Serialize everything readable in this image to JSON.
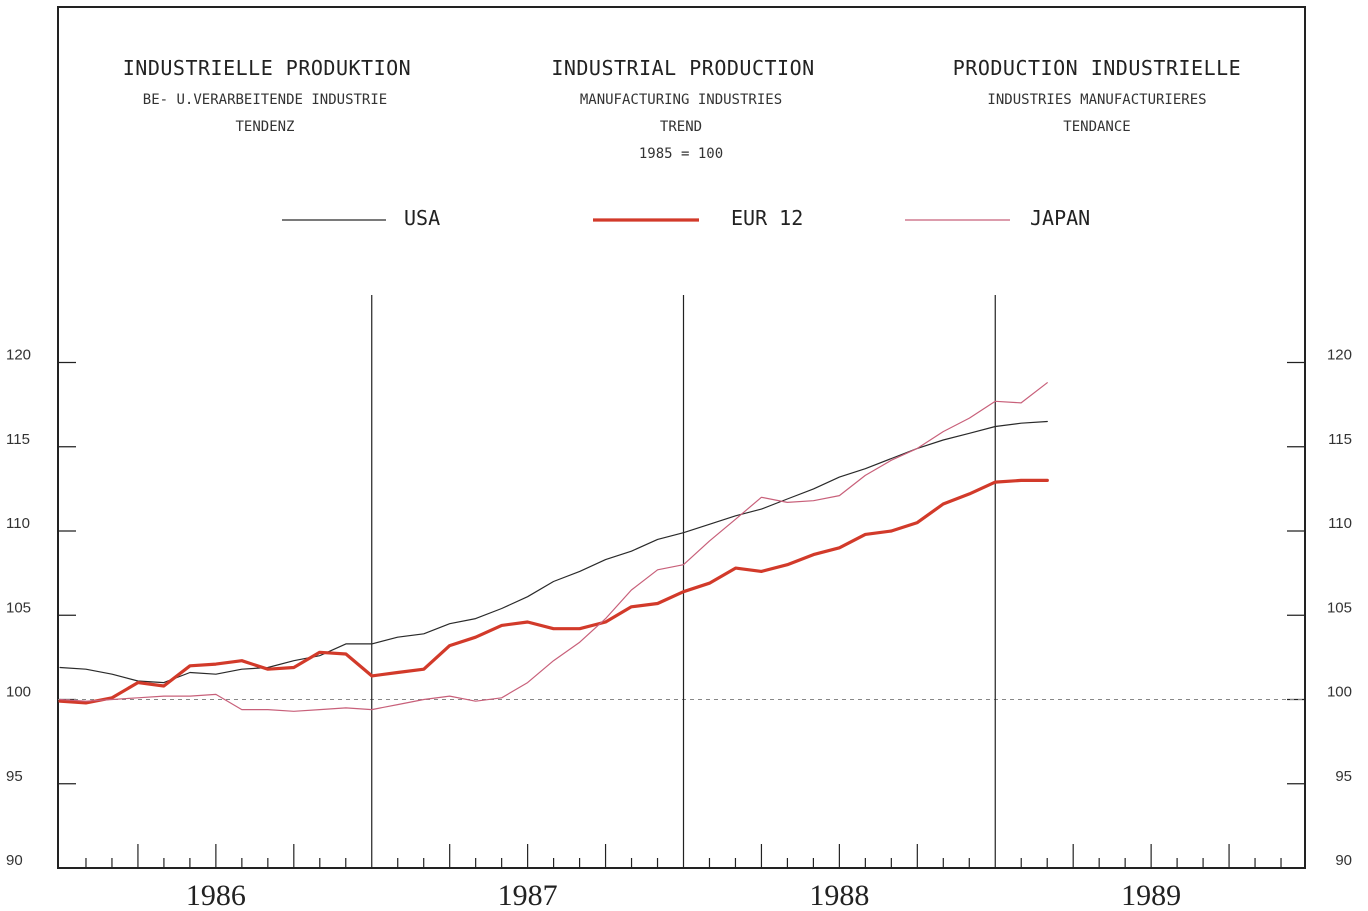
{
  "titles": {
    "de": {
      "title": "INDUSTRIELLE PRODUKTION",
      "line1": "BE- U.VERARBEITENDE INDUSTRIE",
      "line2": "TENDENZ"
    },
    "en": {
      "title": "INDUSTRIAL PRODUCTION",
      "line1": "MANUFACTURING INDUSTRIES",
      "line2": "TREND",
      "line3": "1985 = 100"
    },
    "fr": {
      "title": "PRODUCTION INDUSTRIELLE",
      "line1": "INDUSTRIES MANUFACTURIERES",
      "line2": "TENDANCE"
    }
  },
  "colors": {
    "usa": "#2a2a2a",
    "eur12": "#d23a2a",
    "japan": "#c8607a",
    "axis": "#222222",
    "reference": "#888888"
  },
  "chart_data": {
    "type": "line",
    "x_unit": "year (monthly observations)",
    "x_range": [
      1986.0,
      1990.0
    ],
    "ylim": [
      90,
      122
    ],
    "yticks": [
      90,
      95,
      100,
      105,
      110,
      115,
      120
    ],
    "ytick_labels": [
      "90",
      "95",
      "100",
      "105",
      "110",
      "115",
      "120"
    ],
    "year_labels": [
      {
        "x": 1986.5,
        "label": "1986"
      },
      {
        "x": 1987.5,
        "label": "1987"
      },
      {
        "x": 1988.5,
        "label": "1988"
      },
      {
        "x": 1989.5,
        "label": "1989"
      }
    ],
    "year_dividers": [
      1987,
      1988,
      1989
    ],
    "reference_line": 100,
    "grid": false,
    "legend": "top",
    "series": [
      {
        "key": "usa",
        "name": "USA",
        "width": 1.2,
        "x": [
          1986.0,
          1986.083,
          1986.167,
          1986.25,
          1986.333,
          1986.417,
          1986.5,
          1986.583,
          1986.667,
          1986.75,
          1986.833,
          1986.917,
          1987.0,
          1987.083,
          1987.167,
          1987.25,
          1987.333,
          1987.417,
          1987.5,
          1987.583,
          1987.667,
          1987.75,
          1987.833,
          1987.917,
          1988.0,
          1988.083,
          1988.167,
          1988.25,
          1988.333,
          1988.417,
          1988.5,
          1988.583,
          1988.667,
          1988.75,
          1988.833,
          1988.917,
          1989.0,
          1989.083,
          1989.167
        ],
        "values": [
          101.9,
          101.8,
          101.5,
          101.1,
          101.0,
          101.6,
          101.5,
          101.8,
          101.9,
          102.3,
          102.6,
          103.3,
          103.3,
          103.7,
          103.9,
          104.5,
          104.8,
          105.4,
          106.1,
          107.0,
          107.6,
          108.3,
          108.8,
          109.5,
          109.9,
          110.4,
          110.9,
          111.3,
          111.9,
          112.5,
          113.2,
          113.7,
          114.3,
          114.9,
          115.4,
          115.8,
          116.2,
          116.4,
          116.5
        ]
      },
      {
        "key": "eur12",
        "name": "EUR 12",
        "width": 3.2,
        "x": [
          1986.0,
          1986.083,
          1986.167,
          1986.25,
          1986.333,
          1986.417,
          1986.5,
          1986.583,
          1986.667,
          1986.75,
          1986.833,
          1986.917,
          1987.0,
          1987.083,
          1987.167,
          1987.25,
          1987.333,
          1987.417,
          1987.5,
          1987.583,
          1987.667,
          1987.75,
          1987.833,
          1987.917,
          1988.0,
          1988.083,
          1988.167,
          1988.25,
          1988.333,
          1988.417,
          1988.5,
          1988.583,
          1988.667,
          1988.75,
          1988.833,
          1988.917,
          1989.0,
          1989.083,
          1989.167
        ],
        "values": [
          99.9,
          99.8,
          100.1,
          101.0,
          100.8,
          102.0,
          102.1,
          102.3,
          101.8,
          101.9,
          102.8,
          102.7,
          101.4,
          101.6,
          101.8,
          103.2,
          103.7,
          104.4,
          104.6,
          104.2,
          104.2,
          104.6,
          105.5,
          105.7,
          106.4,
          106.9,
          107.8,
          107.6,
          108.0,
          108.6,
          109.0,
          109.8,
          110.0,
          110.5,
          111.6,
          112.2,
          112.9,
          113.0,
          113.0
        ]
      },
      {
        "key": "japan",
        "name": "JAPAN",
        "width": 1.2,
        "x": [
          1986.0,
          1986.083,
          1986.167,
          1986.25,
          1986.333,
          1986.417,
          1986.5,
          1986.583,
          1986.667,
          1986.75,
          1986.833,
          1986.917,
          1987.0,
          1987.083,
          1987.167,
          1987.25,
          1987.333,
          1987.417,
          1987.5,
          1987.583,
          1987.667,
          1987.75,
          1987.833,
          1987.917,
          1988.0,
          1988.083,
          1988.167,
          1988.25,
          1988.333,
          1988.417,
          1988.5,
          1988.583,
          1988.667,
          1988.75,
          1988.833,
          1988.917,
          1989.0,
          1989.083,
          1989.167
        ],
        "values": [
          100.0,
          99.9,
          100.0,
          100.1,
          100.2,
          100.2,
          100.3,
          99.4,
          99.4,
          99.3,
          99.4,
          99.5,
          99.4,
          99.7,
          100.0,
          100.2,
          99.9,
          100.1,
          101.0,
          102.3,
          103.4,
          104.8,
          106.5,
          107.7,
          108.0,
          109.4,
          110.7,
          112.0,
          111.7,
          111.8,
          112.1,
          113.3,
          114.2,
          114.9,
          115.9,
          116.7,
          117.7,
          117.6,
          118.8
        ]
      }
    ]
  }
}
